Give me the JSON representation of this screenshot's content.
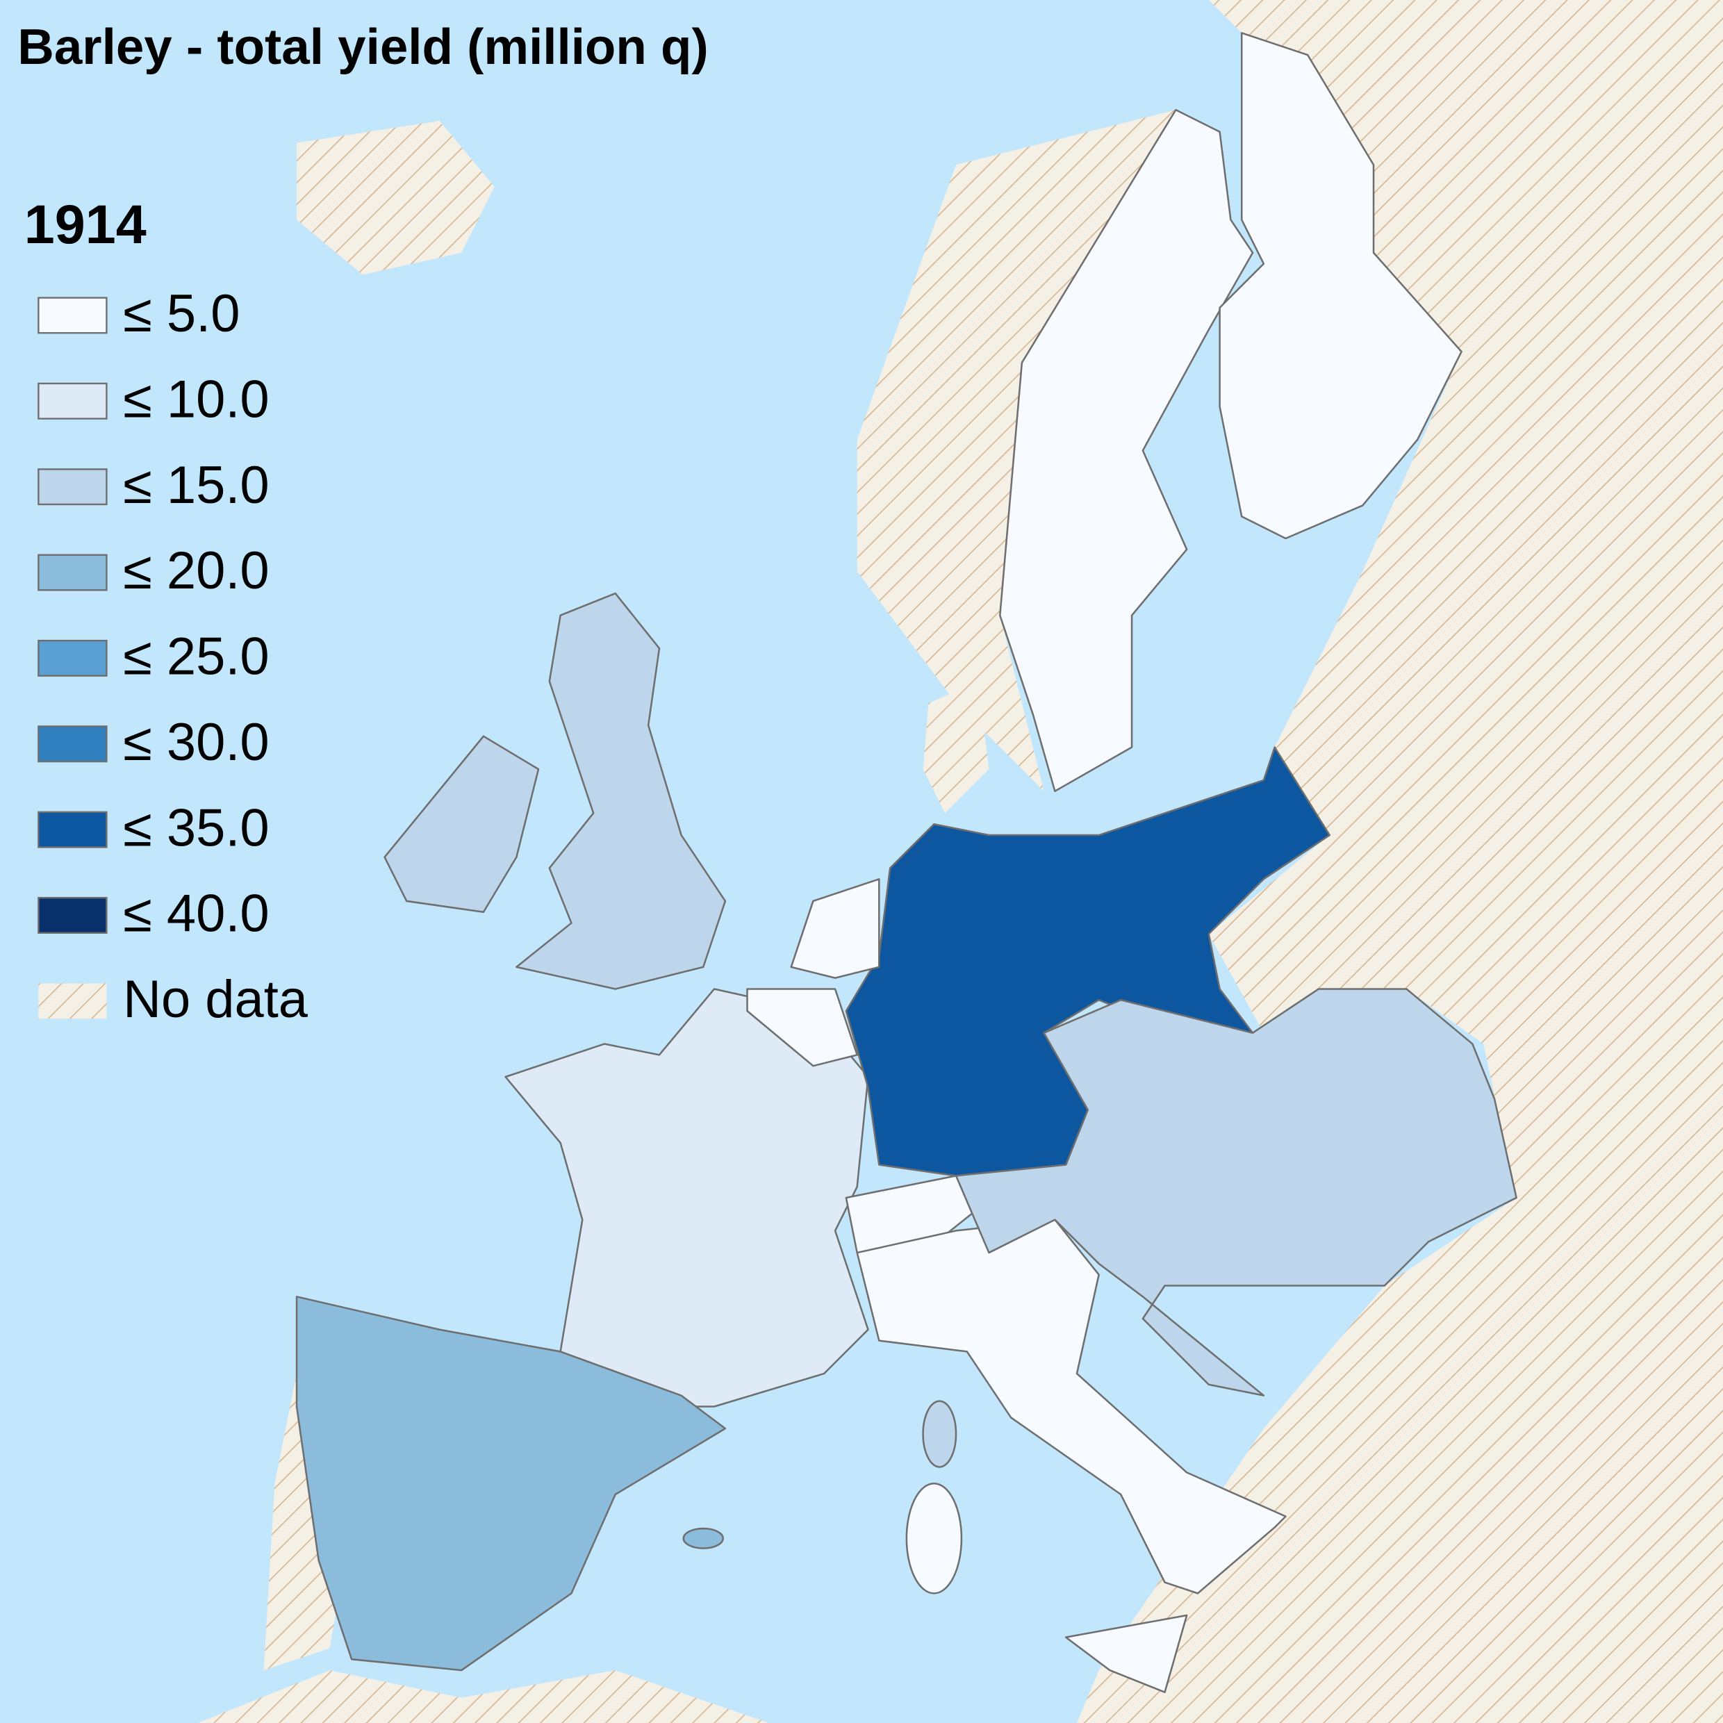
{
  "title": "Barley - total yield (million q)",
  "legend": {
    "title": "1914",
    "items": [
      {
        "label": "≤ 5.0",
        "color": "#f7fbff"
      },
      {
        "label": "≤ 10.0",
        "color": "#deebf7"
      },
      {
        "label": "≤ 15.0",
        "color": "#bdd6eb"
      },
      {
        "label": "≤ 20.0",
        "color": "#8bbcdc"
      },
      {
        "label": "≤ 25.0",
        "color": "#5aa0d2"
      },
      {
        "label": "≤ 30.0",
        "color": "#3080c0"
      },
      {
        "label": "≤ 35.0",
        "color": "#0d56a0"
      },
      {
        "label": "≤ 40.0",
        "color": "#08306b"
      },
      {
        "label": "No data"
      }
    ]
  }
}
